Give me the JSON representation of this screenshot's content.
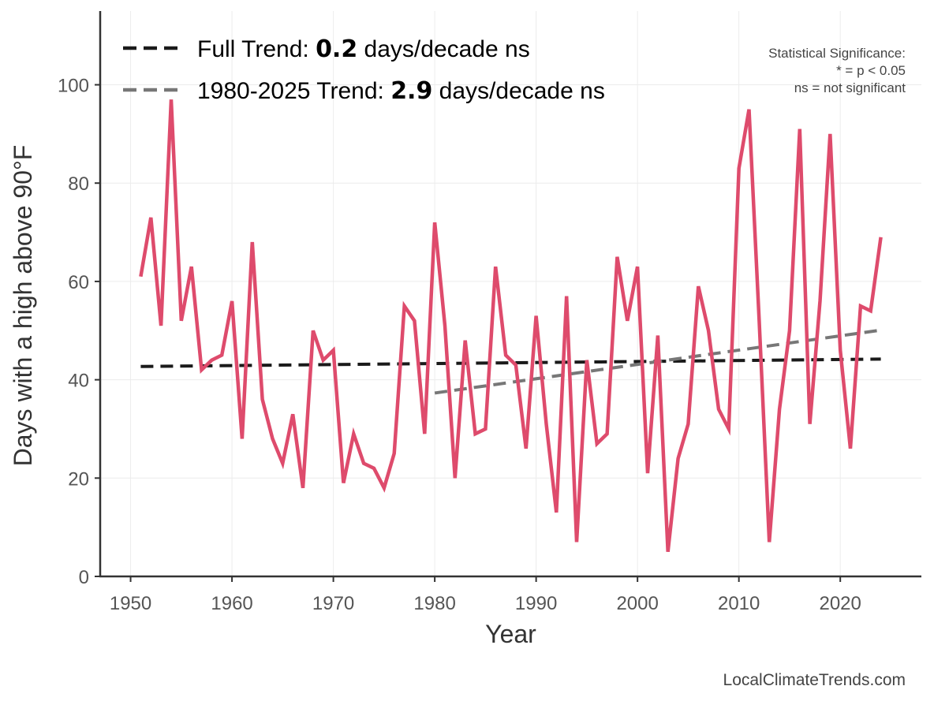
{
  "chart_data": {
    "type": "line",
    "xlabel": "Year",
    "ylabel": "Days with a high above 90°F",
    "xlim": [
      1947,
      2028
    ],
    "ylim": [
      0,
      115
    ],
    "x_ticks": [
      1950,
      1960,
      1970,
      1980,
      1990,
      2000,
      2010,
      2020
    ],
    "y_ticks": [
      0,
      20,
      40,
      60,
      80,
      100
    ],
    "grid": true,
    "series": [
      {
        "name": "Days above 90°F",
        "color": "#de4b6c",
        "x": [
          1951,
          1952,
          1953,
          1954,
          1955,
          1956,
          1957,
          1958,
          1959,
          1960,
          1961,
          1962,
          1963,
          1964,
          1965,
          1966,
          1967,
          1968,
          1969,
          1970,
          1971,
          1972,
          1973,
          1974,
          1975,
          1976,
          1977,
          1978,
          1979,
          1980,
          1981,
          1982,
          1983,
          1984,
          1985,
          1986,
          1987,
          1988,
          1989,
          1990,
          1991,
          1992,
          1993,
          1994,
          1995,
          1996,
          1997,
          1998,
          1999,
          2000,
          2001,
          2002,
          2003,
          2004,
          2005,
          2006,
          2007,
          2008,
          2009,
          2010,
          2011,
          2012,
          2013,
          2014,
          2015,
          2016,
          2017,
          2018,
          2019,
          2020,
          2021,
          2022,
          2023,
          2024
        ],
        "values": [
          61,
          73,
          51,
          97,
          52,
          63,
          42,
          44,
          45,
          56,
          28,
          68,
          36,
          28,
          23,
          33,
          18,
          50,
          44,
          46,
          19,
          29,
          23,
          22,
          18,
          25,
          55,
          52,
          29,
          72,
          51,
          20,
          48,
          29,
          30,
          63,
          45,
          43,
          26,
          53,
          31,
          13,
          57,
          7,
          44,
          27,
          29,
          65,
          52,
          63,
          21,
          49,
          5,
          24,
          31,
          59,
          50,
          34,
          30,
          83,
          95,
          52,
          7,
          34,
          50,
          91,
          31,
          56,
          90,
          46,
          26,
          55,
          54,
          69
        ]
      }
    ],
    "trends": [
      {
        "name": "Full Trend",
        "label_prefix": "Full Trend: ",
        "value_text": "0.2",
        "label_suffix": " days/decade ns",
        "color": "#1a1a1a",
        "x": [
          1951,
          2024
        ],
        "y": [
          42.7,
          44.2
        ]
      },
      {
        "name": "1980-2025 Trend",
        "label_prefix": "1980-2025 Trend: ",
        "value_text": "2.9",
        "label_suffix": " days/decade ns",
        "color": "#777777",
        "x": [
          1980,
          2024
        ],
        "y": [
          37.3,
          50.1
        ]
      }
    ],
    "significance_note": [
      "Statistical Significance:",
      "* = p < 0.05",
      "ns = not significant"
    ],
    "credit": "LocalClimateTrends.com"
  }
}
